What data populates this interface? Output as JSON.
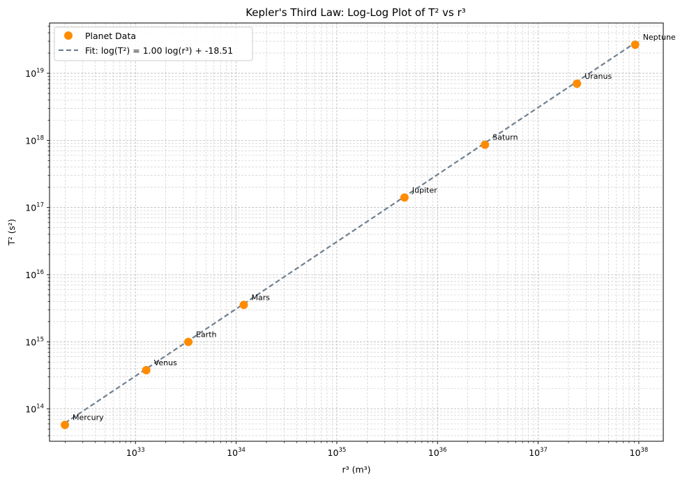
{
  "chart_data": {
    "type": "scatter",
    "title": "Kepler's Third Law: Log-Log Plot of T² vs r³",
    "xlabel": "r³ (m³)",
    "ylabel": "T² (s²)",
    "xscale": "log",
    "yscale": "log",
    "xlim": [
      1.4e+32,
      1.75e+38
    ],
    "ylim": [
      33000000000000.0,
      5.6e+19
    ],
    "grid": true,
    "legend_position": "top-left",
    "x_ticks": [
      {
        "base": "10",
        "exp": "33",
        "value": 1e+33
      },
      {
        "base": "10",
        "exp": "34",
        "value": 1e+34
      },
      {
        "base": "10",
        "exp": "35",
        "value": 1e+35
      },
      {
        "base": "10",
        "exp": "36",
        "value": 1e+36
      },
      {
        "base": "10",
        "exp": "37",
        "value": 1e+37
      },
      {
        "base": "10",
        "exp": "38",
        "value": 1e+38
      }
    ],
    "y_ticks": [
      {
        "base": "10",
        "exp": "14",
        "value": 100000000000000.0
      },
      {
        "base": "10",
        "exp": "15",
        "value": 1000000000000000.0
      },
      {
        "base": "10",
        "exp": "16",
        "value": 1e+16
      },
      {
        "base": "10",
        "exp": "17",
        "value": 1e+17
      },
      {
        "base": "10",
        "exp": "18",
        "value": 1e+18
      },
      {
        "base": "10",
        "exp": "19",
        "value": 1e+19
      }
    ],
    "series": [
      {
        "name": "Planet Data",
        "kind": "points",
        "color": "#ff8c00",
        "points": [
          {
            "label": "Mercury",
            "x": 1.99e+32,
            "y": 57800000000000.0
          },
          {
            "label": "Venus",
            "x": 1.28e+33,
            "y": 378000000000000.0
          },
          {
            "label": "Earth",
            "x": 3.35e+33,
            "y": 995000000000000.0
          },
          {
            "label": "Mars",
            "x": 1.19e+34,
            "y": 3540000000000000.0
          },
          {
            "label": "Jupiter",
            "x": 4.7e+35,
            "y": 1.41e+17
          },
          {
            "label": "Saturn",
            "x": 2.96e+36,
            "y": 8.62e+17
          },
          {
            "label": "Uranus",
            "x": 2.43e+37,
            "y": 7e+18
          },
          {
            "label": "Neptune",
            "x": 9.2e+37,
            "y": 2.66e+19
          }
        ]
      },
      {
        "name": "Fit: log(T²) = 1.00 log(r³) + -18.51",
        "kind": "fit-line",
        "color": "#708090",
        "slope": 1.0,
        "intercept": -18.51
      }
    ]
  }
}
